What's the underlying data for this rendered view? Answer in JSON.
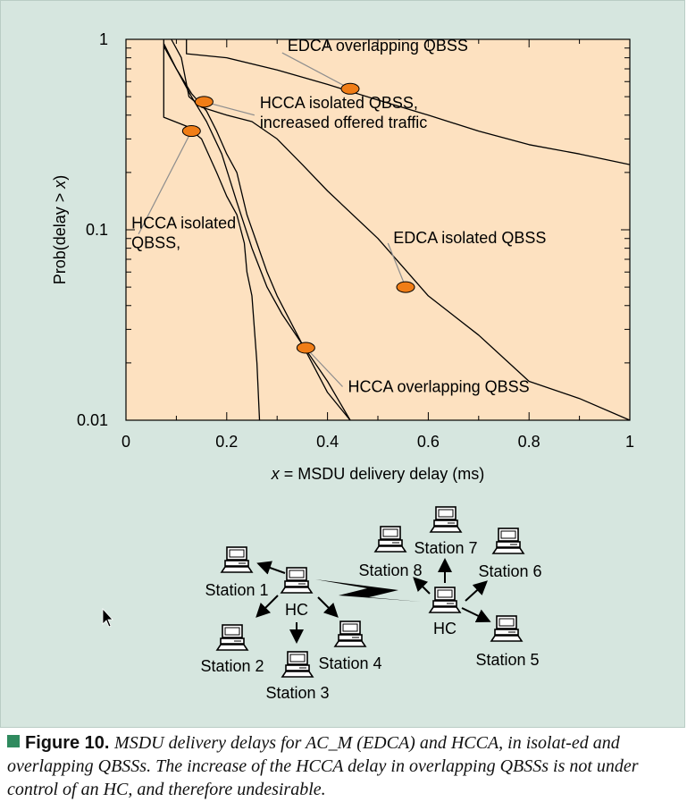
{
  "chart_data": {
    "type": "line",
    "xlabel_prefix": "x",
    "xlabel_suffix": " = MSDU delivery delay (ms)",
    "ylabel_prefix": "Prob(delay > ",
    "ylabel_var": "x",
    "ylabel_suffix": ")",
    "xlim": [
      0,
      1
    ],
    "ylim": [
      0.01,
      1
    ],
    "yscale": "log",
    "grid": false,
    "x_ticks": [
      0,
      0.2,
      0.4,
      0.6,
      0.8,
      1
    ],
    "x_tick_labels": [
      "0",
      "0.2",
      "0.4",
      "0.6",
      "0.8",
      "1"
    ],
    "y_ticks": [
      0.01,
      0.1,
      1
    ],
    "y_tick_labels": [
      "0.01",
      "0.1",
      "1"
    ],
    "series": [
      {
        "name": "EDCA overlapping QBSS",
        "points": [
          [
            0.12,
            1
          ],
          [
            0.12,
            0.84
          ],
          [
            0.2,
            0.8
          ],
          [
            0.3,
            0.69
          ],
          [
            0.4,
            0.58
          ],
          [
            0.5,
            0.48
          ],
          [
            0.6,
            0.4
          ],
          [
            0.7,
            0.33
          ],
          [
            0.8,
            0.28
          ],
          [
            0.9,
            0.25
          ],
          [
            1.0,
            0.22
          ]
        ],
        "marker": [
          0.445,
          0.55
        ],
        "label_anchor": [
          0.31,
          0.85
        ]
      },
      {
        "name": "EDCA isolated QBSS",
        "points": [
          [
            0.09,
            1
          ],
          [
            0.11,
            0.8
          ],
          [
            0.125,
            0.5
          ],
          [
            0.15,
            0.44
          ],
          [
            0.2,
            0.4
          ],
          [
            0.25,
            0.37
          ],
          [
            0.3,
            0.3
          ],
          [
            0.35,
            0.22
          ],
          [
            0.4,
            0.16
          ],
          [
            0.5,
            0.09
          ],
          [
            0.6,
            0.045
          ],
          [
            0.7,
            0.028
          ],
          [
            0.8,
            0.016
          ],
          [
            0.9,
            0.013
          ],
          [
            1.0,
            0.01
          ]
        ],
        "marker": [
          0.555,
          0.05
        ],
        "label_anchor": [
          0.52,
          0.085
        ]
      },
      {
        "name": "HCCA isolated QBSS, increased offered traffic",
        "label_lines": [
          "HCCA isolated QBSS,",
          "increased offered traffic"
        ],
        "points": [
          [
            0.075,
            0.92
          ],
          [
            0.1,
            0.7
          ],
          [
            0.13,
            0.52
          ],
          [
            0.16,
            0.42
          ],
          [
            0.18,
            0.33
          ],
          [
            0.2,
            0.25
          ],
          [
            0.22,
            0.2
          ],
          [
            0.24,
            0.12
          ],
          [
            0.26,
            0.085
          ],
          [
            0.28,
            0.06
          ],
          [
            0.3,
            0.045
          ],
          [
            0.35,
            0.025
          ],
          [
            0.4,
            0.014
          ],
          [
            0.445,
            0.01
          ]
        ],
        "marker": [
          0.155,
          0.47
        ],
        "label_anchor": [
          0.255,
          0.4
        ]
      },
      {
        "name": "HCCA isolated QBSS,",
        "label_lines": [
          "HCCA isolated",
          "QBSS,"
        ],
        "points": [
          [
            0.075,
            1
          ],
          [
            0.075,
            0.39
          ],
          [
            0.12,
            0.35
          ],
          [
            0.15,
            0.3
          ],
          [
            0.18,
            0.2
          ],
          [
            0.2,
            0.15
          ],
          [
            0.22,
            0.12
          ],
          [
            0.235,
            0.085
          ],
          [
            0.24,
            0.06
          ],
          [
            0.25,
            0.045
          ],
          [
            0.255,
            0.03
          ],
          [
            0.26,
            0.02
          ],
          [
            0.265,
            0.01
          ]
        ],
        "marker": [
          0.13,
          0.33
        ],
        "label_anchor": [
          0.025,
          0.095
        ]
      },
      {
        "name": "HCCA overlapping QBSS",
        "points": [
          [
            0.075,
            0.95
          ],
          [
            0.1,
            0.7
          ],
          [
            0.13,
            0.5
          ],
          [
            0.16,
            0.37
          ],
          [
            0.19,
            0.25
          ],
          [
            0.22,
            0.14
          ],
          [
            0.25,
            0.08
          ],
          [
            0.28,
            0.05
          ],
          [
            0.31,
            0.036
          ],
          [
            0.35,
            0.025
          ],
          [
            0.4,
            0.016
          ],
          [
            0.445,
            0.01
          ]
        ],
        "marker": [
          0.357,
          0.024
        ],
        "label_anchor": [
          0.43,
          0.015
        ]
      }
    ]
  },
  "network_diagram": {
    "left_cluster": {
      "center_label": "HC",
      "stations": [
        "Station 1",
        "Station 2",
        "Station 3",
        "Station 4"
      ]
    },
    "right_cluster": {
      "center_label": "HC",
      "stations": [
        "Station 5",
        "Station 6",
        "Station 7",
        "Station 8"
      ]
    },
    "link_icon": "lightning-bolt-icon",
    "station_icon": "computer-terminal-icon"
  },
  "caption": {
    "label": "Figure 10.",
    "text": "MSDU delivery delays for AC_M (EDCA) and HCCA, in isolat-ed and overlapping QBSSs. The increase of the HCCA delay in overlapping QBSSs is not under control of an HC, and therefore undesirable."
  },
  "colors": {
    "panel_bg": "#d6e6df",
    "plot_bg": "#fde1c0",
    "marker_fill": "#f07d16",
    "caption_marker": "#2f8a5e",
    "leader_line": "#8e8e8e"
  }
}
